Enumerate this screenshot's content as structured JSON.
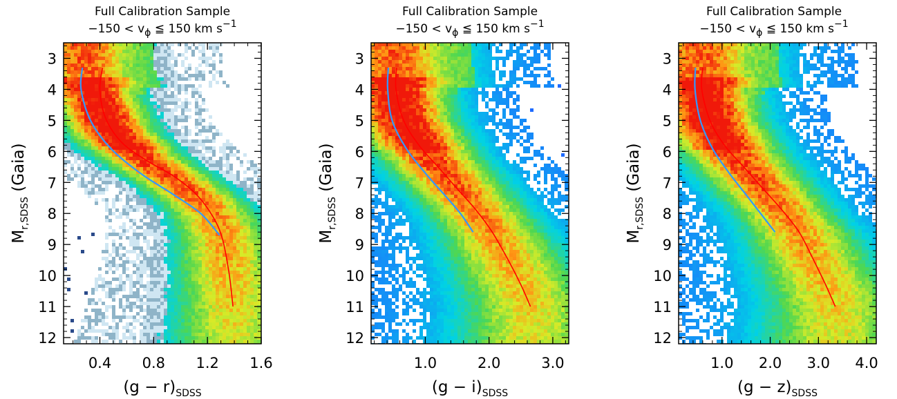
{
  "chart_data": [
    {
      "type": "heatmap",
      "title": "Full Calibration Sample",
      "subtitle": "−150 < v_ϕ ≦ 150 km s^−1",
      "xlabel": "(g − r)_SDSS",
      "ylabel": "M_r,SDSS (Gaia)",
      "xlim": [
        0.13,
        1.6
      ],
      "ylim": [
        12.2,
        2.5
      ],
      "xticks": [
        0.4,
        0.8,
        1.2,
        1.6
      ],
      "xtick_labels": [
        "0.4",
        "0.8",
        "1.2",
        "1.6"
      ],
      "yticks": [
        3,
        4,
        5,
        6,
        7,
        8,
        9,
        10,
        11,
        12
      ],
      "ytick_labels": [
        "3",
        "4",
        "5",
        "6",
        "7",
        "8",
        "9",
        "10",
        "11",
        "12"
      ],
      "ridge": {
        "x": [
          0.28,
          0.36,
          0.48,
          0.62,
          0.8,
          0.98,
          1.15,
          1.25,
          1.32,
          1.36,
          1.39
        ],
        "y": [
          3.3,
          4.2,
          5.3,
          5.9,
          6.5,
          7.0,
          7.6,
          8.1,
          8.8,
          9.9,
          11.0
        ],
        "width_mag": 0.2
      },
      "series": [
        {
          "name": "",
          "color": "#ff0000",
          "x": [
            0.42,
            0.4,
            0.44,
            0.56,
            0.75,
            0.95,
            1.12,
            1.24,
            1.31,
            1.36,
            1.39
          ],
          "y": [
            3.3,
            4.0,
            4.9,
            5.7,
            6.3,
            6.8,
            7.4,
            8.1,
            8.8,
            9.9,
            11.0
          ]
        },
        {
          "name": "",
          "color": "#3399ff",
          "x": [
            0.27,
            0.26,
            0.33,
            0.48,
            0.7,
            0.95,
            1.15,
            1.29
          ],
          "y": [
            3.3,
            4.0,
            5.0,
            5.9,
            6.7,
            7.4,
            8.0,
            8.7
          ]
        }
      ]
    },
    {
      "type": "heatmap",
      "title": "Full Calibration Sample",
      "subtitle": "−150 < v_ϕ ≦ 150 km s^−1",
      "xlabel": "(g − i)_SDSS",
      "ylabel": "M_r,SDSS (Gaia)",
      "xlim": [
        0.15,
        3.25
      ],
      "ylim": [
        12.2,
        2.5
      ],
      "xticks": [
        1.0,
        2.0,
        3.0
      ],
      "xtick_labels": [
        "1.0",
        "2.0",
        "3.0"
      ],
      "yticks": [
        3,
        4,
        5,
        6,
        7,
        8,
        9,
        10,
        11,
        12
      ],
      "ytick_labels": [
        "3",
        "4",
        "5",
        "6",
        "7",
        "8",
        "9",
        "10",
        "11",
        "12"
      ],
      "ridge": {
        "x": [
          0.5,
          0.52,
          0.65,
          0.9,
          1.2,
          1.5,
          1.8,
          2.05,
          2.3,
          2.5,
          2.65
        ],
        "y": [
          3.3,
          4.0,
          5.0,
          5.8,
          6.5,
          7.2,
          7.9,
          8.6,
          9.5,
          10.3,
          11.0
        ],
        "width_mag": 0.32
      },
      "series": [
        {
          "name": "",
          "color": "#ff0000",
          "x": [
            0.55,
            0.54,
            0.66,
            0.9,
            1.2,
            1.5,
            1.8,
            2.05,
            2.3,
            2.5,
            2.65
          ],
          "y": [
            3.3,
            4.0,
            5.0,
            5.8,
            6.5,
            7.2,
            7.9,
            8.6,
            9.5,
            10.3,
            11.0
          ]
        },
        {
          "name": "",
          "color": "#3399ff",
          "x": [
            0.42,
            0.41,
            0.48,
            0.7,
            1.0,
            1.3,
            1.55,
            1.75
          ],
          "y": [
            3.3,
            4.0,
            5.0,
            5.9,
            6.7,
            7.4,
            8.0,
            8.6
          ]
        }
      ]
    },
    {
      "type": "heatmap",
      "title": "Full Calibration Sample",
      "subtitle": "−150 < v_ϕ ≦ 150 km s^−1",
      "xlabel": "(g − z)_SDSS",
      "ylabel": "M_r,SDSS (Gaia)",
      "xlim": [
        0.1,
        4.2
      ],
      "ylim": [
        12.2,
        2.5
      ],
      "xticks": [
        1.0,
        2.0,
        3.0,
        4.0
      ],
      "xtick_labels": [
        "1.0",
        "2.0",
        "3.0",
        "4.0"
      ],
      "yticks": [
        3,
        4,
        5,
        6,
        7,
        8,
        9,
        10,
        11,
        12
      ],
      "ytick_labels": [
        "3",
        "4",
        "5",
        "6",
        "7",
        "8",
        "9",
        "10",
        "11",
        "12"
      ],
      "ridge": {
        "x": [
          0.55,
          0.58,
          0.75,
          1.05,
          1.45,
          1.85,
          2.25,
          2.6,
          2.9,
          3.15,
          3.35
        ],
        "y": [
          3.3,
          4.0,
          5.0,
          5.8,
          6.5,
          7.2,
          7.9,
          8.6,
          9.5,
          10.3,
          11.0
        ],
        "width_mag": 0.32
      },
      "series": [
        {
          "name": "",
          "color": "#ff0000",
          "x": [
            0.6,
            0.58,
            0.75,
            1.05,
            1.45,
            1.85,
            2.25,
            2.6,
            2.9,
            3.15,
            3.35
          ],
          "y": [
            3.3,
            4.0,
            5.0,
            5.8,
            6.5,
            7.2,
            7.9,
            8.6,
            9.5,
            10.3,
            11.0
          ]
        },
        {
          "name": "",
          "color": "#3399ff",
          "x": [
            0.45,
            0.44,
            0.55,
            0.8,
            1.15,
            1.5,
            1.8,
            2.1
          ],
          "y": [
            3.3,
            4.0,
            5.0,
            5.9,
            6.7,
            7.4,
            8.0,
            8.6
          ]
        }
      ]
    }
  ]
}
